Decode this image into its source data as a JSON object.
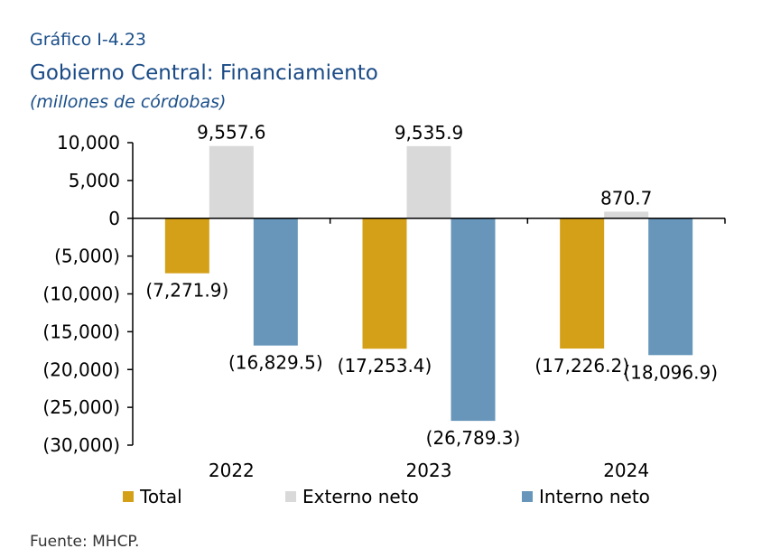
{
  "header": {
    "kicker": "Gráfico I-4.23",
    "title": "Gobierno Central: Financiamiento",
    "units": "(millones de córdobas)"
  },
  "source": "Fuente: MHCP.",
  "colors": {
    "total": "#D4A017",
    "externo": "#D9D9D9",
    "interno": "#6796BA",
    "axis": "#000000"
  },
  "chart_data": {
    "type": "bar",
    "categories": [
      "2022",
      "2023",
      "2024"
    ],
    "series": [
      {
        "name": "Total",
        "values": [
          -7271.9,
          -17253.4,
          -17226.2
        ],
        "labels": [
          "(7,271.9)",
          "(17,253.4)",
          "(17,226.2)"
        ]
      },
      {
        "name": "Externo neto",
        "values": [
          9557.6,
          9535.9,
          870.7
        ],
        "labels": [
          "9,557.6",
          "9,535.9",
          "870.7"
        ]
      },
      {
        "name": "Interno neto",
        "values": [
          -16829.5,
          -26789.3,
          -18096.9
        ],
        "labels": [
          "(16,829.5)",
          "(26,789.3)",
          "(18,096.9)"
        ]
      }
    ],
    "ylim": [
      -30000,
      10000
    ],
    "yticks": [
      10000,
      5000,
      0,
      -5000,
      -10000,
      -15000,
      -20000,
      -25000,
      -30000
    ],
    "ytick_labels": [
      "10,000",
      "5,000",
      "0",
      "(5,000)",
      "(10,000)",
      "(15,000)",
      "(20,000)",
      "(25,000)",
      "(30,000)"
    ],
    "legend_position": "bottom",
    "grid": false
  }
}
